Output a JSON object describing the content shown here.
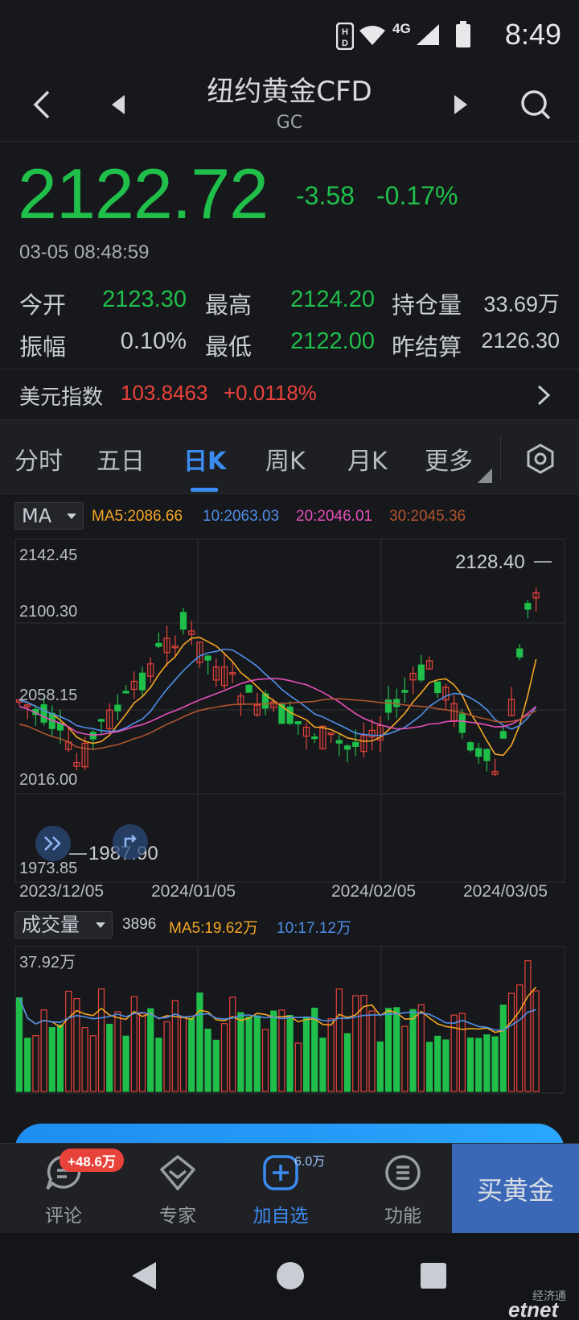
{
  "status_bar": {
    "time": "8:49",
    "network": "4G"
  },
  "header": {
    "title": "纽约黄金CFD",
    "code": "GC"
  },
  "quote": {
    "price": "2122.72",
    "change": "-3.58",
    "change_pct": "-0.17%",
    "timestamp": "03-05 08:48:59"
  },
  "stats": [
    {
      "label": "今开",
      "value": "2123.30",
      "color": "#1fbf4a"
    },
    {
      "label": "最高",
      "value": "2124.20",
      "color": "#1fbf4a"
    },
    {
      "label": "持仓量",
      "value": "33.69万",
      "color": "#c9ccd2"
    },
    {
      "label": "振幅",
      "value": "0.10%",
      "color": "#c9ccd2"
    },
    {
      "label": "最低",
      "value": "2122.00",
      "color": "#1fbf4a"
    },
    {
      "label": "昨结算",
      "value": "2126.30",
      "color": "#c9ccd2"
    }
  ],
  "usd_index": {
    "label": "美元指数",
    "value": "103.8463",
    "change": "+0.0118%"
  },
  "tabs": [
    {
      "label": "分时"
    },
    {
      "label": "五日"
    },
    {
      "label": "日K"
    },
    {
      "label": "周K"
    },
    {
      "label": "月K"
    },
    {
      "label": "更多"
    }
  ],
  "active_tab": "日K",
  "ma_row": {
    "selector": "MA",
    "ma5": "MA5:2086.66",
    "ma10": "10:2063.03",
    "ma20": "20:2046.01",
    "ma30": "30:2045.36"
  },
  "kline": {
    "y_labels": [
      "2142.45",
      "2100.30",
      "2058.15",
      "2016.00",
      "1973.85"
    ],
    "x_labels": [
      "2023/12/05",
      "2024/01/05",
      "2024/02/05",
      "2024/03/05"
    ],
    "high_marker": "2128.40",
    "low_marker": "1987.90"
  },
  "volume_row": {
    "selector": "成交量",
    "last": "3896",
    "ma5": "MA5:19.62万",
    "ma10": "10:17.12万",
    "y_max_label": "37.92万"
  },
  "toolbar": {
    "comments": {
      "label": "评论",
      "badge": "+48.6万"
    },
    "expert": {
      "label": "专家"
    },
    "watchlist": {
      "label": "加自选",
      "count": "6.0万"
    },
    "functions": {
      "label": "功能"
    },
    "buy": {
      "label": "买黄金"
    }
  },
  "watermark": {
    "top": "经济通",
    "bottom": "etnet"
  },
  "colors": {
    "up": "#e8433b",
    "down": "#1fbf4a",
    "ma5": "#f5a623",
    "ma10": "#4f8fe8",
    "ma20": "#e64fb8",
    "ma30": "#b0542e",
    "accent": "#3c8bf0"
  }
}
